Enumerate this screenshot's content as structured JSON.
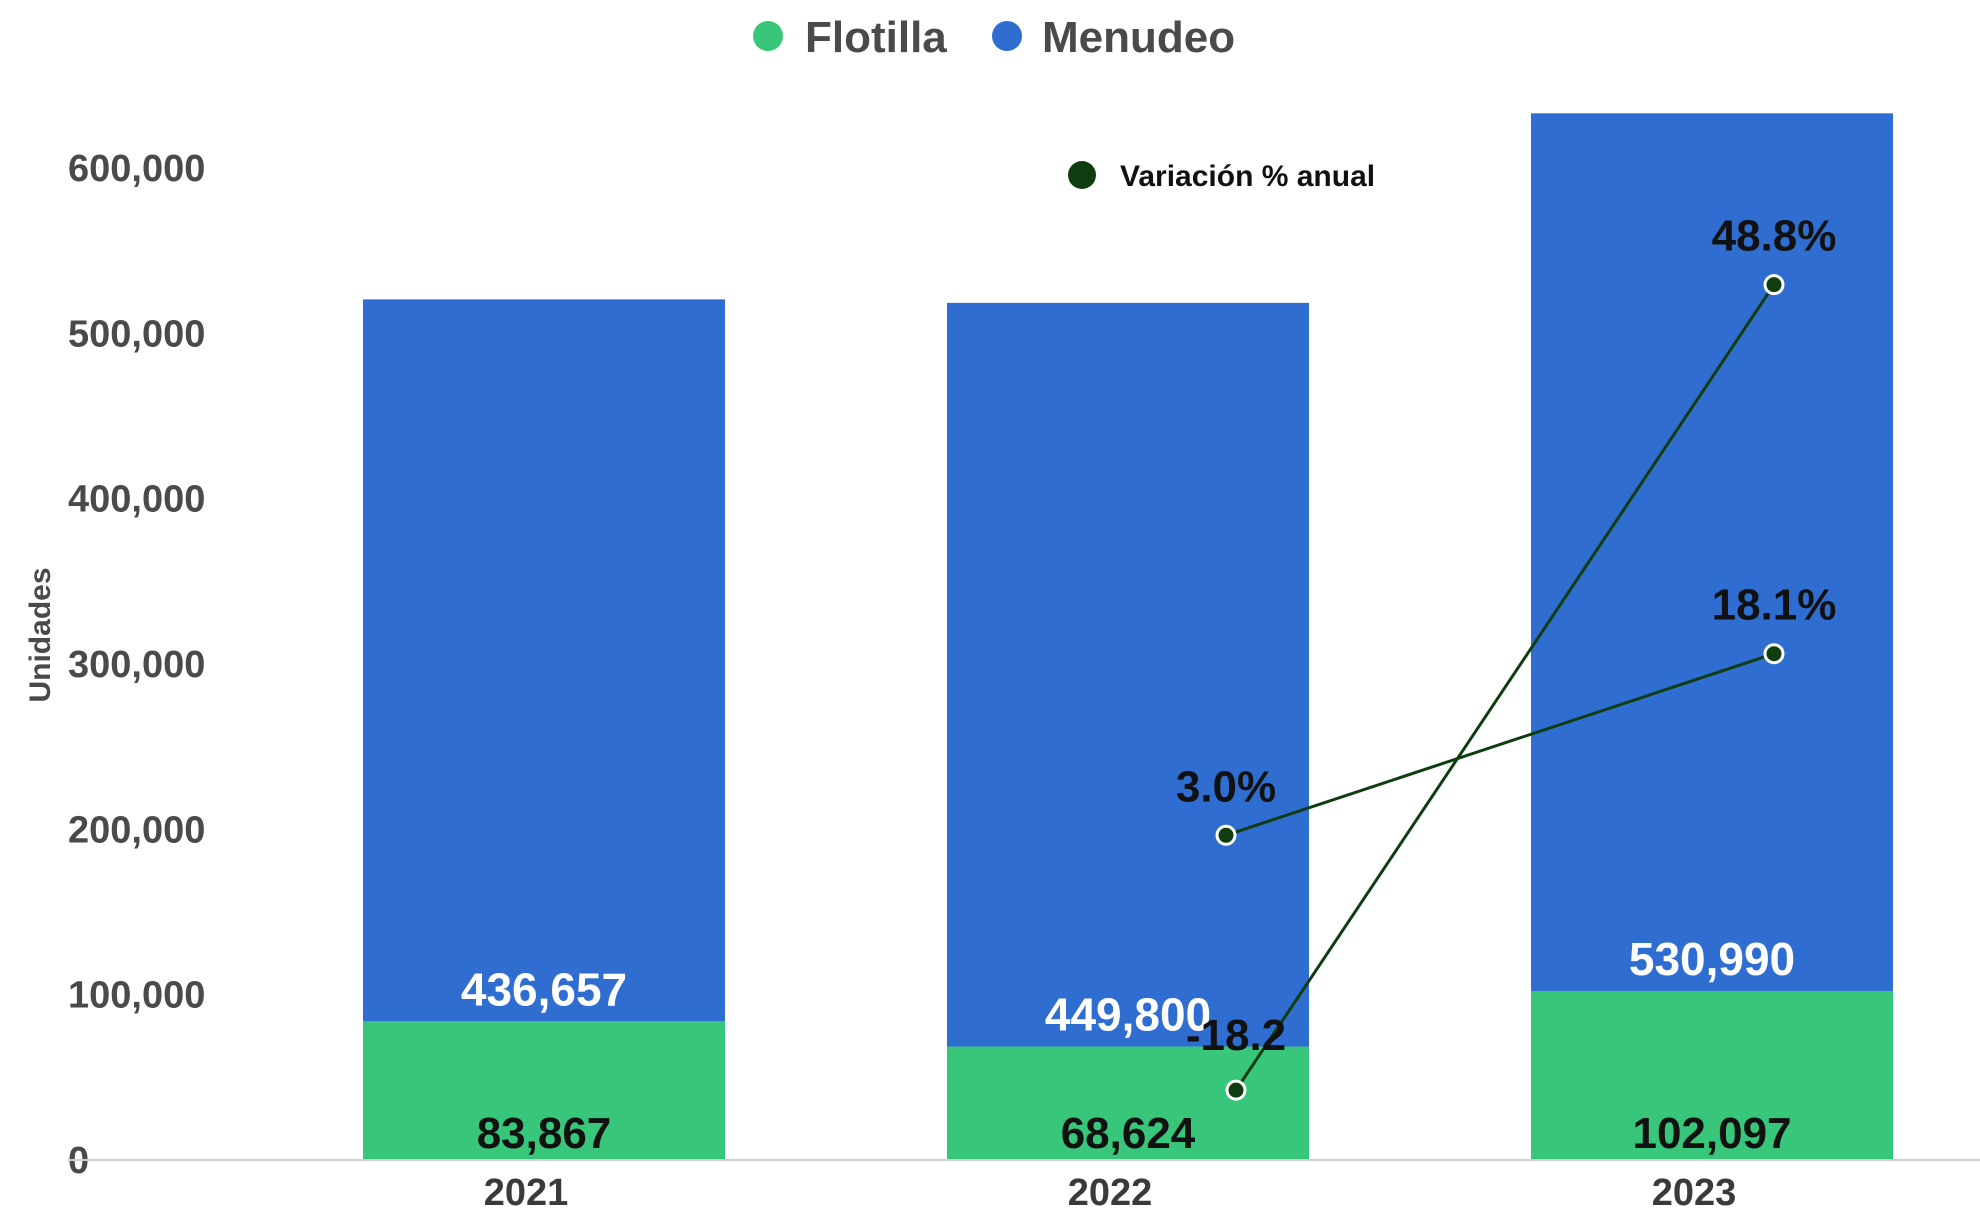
{
  "chart_data": {
    "type": "bar",
    "stacked": true,
    "categories": [
      "2021",
      "2022",
      "2023"
    ],
    "series": [
      {
        "name": "Flotilla",
        "values": [
          83867,
          68624,
          102097
        ],
        "labels": [
          "83,867",
          "68,624",
          "102,097"
        ],
        "color": "#37c67a"
      },
      {
        "name": "Menudeo",
        "values": [
          436657,
          449800,
          530990
        ],
        "labels": [
          "436,657",
          "449,800",
          "530,990"
        ],
        "color": "#2f6dd0"
      }
    ],
    "variation": {
      "name": "Variación % anual",
      "color": "#0f3d10",
      "total": {
        "categories": [
          "2022",
          "2023"
        ],
        "values": [
          3.0,
          18.1
        ],
        "labels": [
          "3.0%",
          "18.1%"
        ]
      },
      "flotilla": {
        "categories": [
          "2022",
          "2023"
        ],
        "values": [
          -18.2,
          48.8
        ],
        "labels": [
          "-18.2",
          "48.8%"
        ]
      }
    },
    "ylabel": "Unidades",
    "xlabel": "",
    "ylim": [
      0,
      600000
    ],
    "yticks": [
      0,
      100000,
      200000,
      300000,
      400000,
      500000,
      600000
    ],
    "ytick_labels": [
      "0",
      "100,000",
      "200,000",
      "300,000",
      "400,000",
      "500,000",
      "600,000"
    ],
    "legend_position": "top-center",
    "grid": false
  }
}
